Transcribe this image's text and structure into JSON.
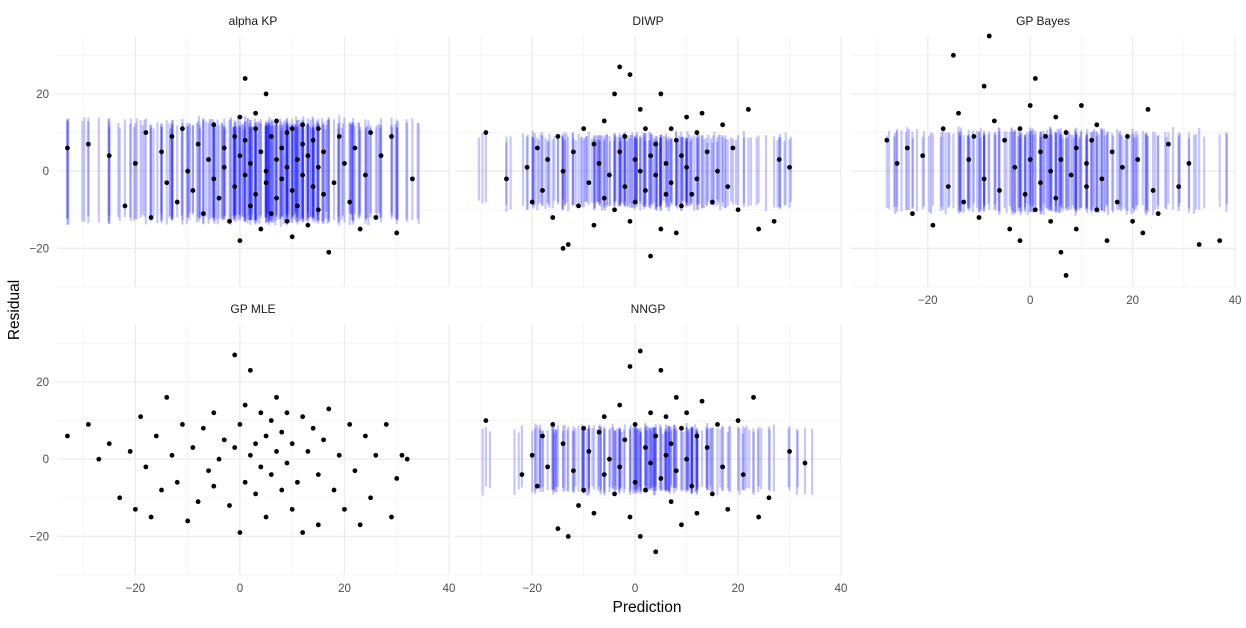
{
  "chart_data": {
    "type": "scatter",
    "xlabel": "Prediction",
    "ylabel": "Residual",
    "xlim": [
      -35,
      40
    ],
    "ylim": [
      -30,
      35
    ],
    "x_ticks": [
      -20,
      0,
      20,
      40
    ],
    "y_ticks": [
      -20,
      0,
      20
    ],
    "grid": true,
    "colors": {
      "points": "#000000",
      "intervals": "#0000ff",
      "grid": "#ebebeb"
    },
    "panels": [
      {
        "title": "alpha KP",
        "has_intervals": true,
        "interval_halfwidth": 12.5,
        "x": [
          -33,
          -29,
          -25,
          -22,
          -20,
          -18,
          -17,
          -15,
          -14,
          -13,
          -12,
          -11,
          -10,
          -9,
          -8,
          -7,
          -6,
          -5,
          -5,
          -4,
          -3,
          -3,
          -2,
          -1,
          -1,
          0,
          0,
          0,
          1,
          1,
          1,
          2,
          2,
          3,
          3,
          3,
          4,
          4,
          5,
          5,
          5,
          6,
          6,
          7,
          7,
          7,
          8,
          8,
          9,
          9,
          9,
          10,
          10,
          10,
          11,
          11,
          12,
          12,
          12,
          13,
          13,
          14,
          14,
          15,
          15,
          15,
          16,
          16,
          17,
          18,
          19,
          20,
          21,
          22,
          23,
          24,
          25,
          26,
          27,
          29,
          30,
          33
        ],
        "y": [
          6,
          7,
          4,
          -9,
          2,
          10,
          -12,
          5,
          -3,
          9,
          -8,
          11,
          0,
          -5,
          7,
          -11,
          3,
          12,
          -2,
          -7,
          6,
          1,
          -13,
          9,
          -4,
          14,
          -18,
          4,
          -1,
          8,
          24,
          -9,
          2,
          11,
          -6,
          15,
          -15,
          5,
          -3,
          0,
          20,
          9,
          -11,
          3,
          -7,
          13,
          -2,
          6,
          -13,
          10,
          1,
          -5,
          11,
          -17,
          3,
          -9,
          7,
          -1,
          12,
          -14,
          4,
          8,
          -4,
          1,
          -10,
          11,
          -6,
          5,
          -21,
          -3,
          9,
          2,
          -8,
          6,
          -15,
          -1,
          10,
          -12,
          4,
          9,
          -16,
          -2
        ],
        "errorbar_x": [
          -33,
          -29,
          -27,
          -25,
          -23,
          -21,
          -19,
          -17,
          -15,
          -13,
          -11,
          -9,
          -7,
          -5,
          -3,
          -1,
          1,
          3,
          5,
          7,
          9,
          11,
          13,
          15,
          17,
          19,
          21,
          23,
          25,
          27,
          29,
          30,
          32,
          34
        ]
      },
      {
        "title": "DIWP",
        "has_intervals": true,
        "interval_halfwidth": 9,
        "x": [
          -29,
          -25,
          -21,
          -20,
          -19,
          -18,
          -17,
          -16,
          -15,
          -14,
          -14,
          -13,
          -12,
          -11,
          -10,
          -9,
          -8,
          -8,
          -7,
          -6,
          -6,
          -5,
          -4,
          -4,
          -3,
          -3,
          -2,
          -2,
          -1,
          -1,
          0,
          0,
          1,
          1,
          2,
          2,
          3,
          3,
          4,
          4,
          5,
          5,
          6,
          6,
          7,
          7,
          8,
          8,
          9,
          9,
          10,
          10,
          11,
          12,
          12,
          13,
          14,
          15,
          16,
          17,
          18,
          19,
          20,
          22,
          24,
          27,
          28,
          30
        ],
        "y": [
          10,
          -2,
          1,
          -8,
          6,
          -5,
          3,
          -12,
          9,
          -20,
          0,
          -19,
          5,
          -9,
          11,
          -3,
          7,
          -14,
          2,
          -7,
          13,
          -1,
          20,
          -10,
          5,
          27,
          -4,
          9,
          -13,
          25,
          3,
          -8,
          16,
          0,
          -5,
          11,
          -22,
          4,
          -1,
          7,
          -15,
          20,
          2,
          -6,
          11,
          -3,
          8,
          -16,
          4,
          -9,
          14,
          1,
          -6,
          10,
          -2,
          15,
          5,
          -8,
          0,
          12,
          -4,
          6,
          -10,
          16,
          -15,
          -13,
          3,
          1
        ]
      },
      {
        "title": "GP Bayes",
        "has_intervals": true,
        "interval_halfwidth": 10,
        "x": [
          -28,
          -26,
          -24,
          -23,
          -21,
          -19,
          -17,
          -16,
          -15,
          -14,
          -13,
          -12,
          -11,
          -10,
          -9,
          -9,
          -8,
          -7,
          -6,
          -5,
          -4,
          -3,
          -2,
          -2,
          -1,
          0,
          0,
          1,
          1,
          2,
          2,
          3,
          4,
          4,
          5,
          5,
          6,
          6,
          7,
          7,
          8,
          9,
          9,
          10,
          11,
          11,
          12,
          13,
          13,
          14,
          15,
          16,
          17,
          18,
          19,
          20,
          21,
          22,
          23,
          24,
          25,
          27,
          29,
          31,
          33,
          37
        ],
        "y": [
          8,
          2,
          6,
          -11,
          4,
          -14,
          11,
          -4,
          30,
          15,
          -8,
          3,
          9,
          -12,
          22,
          -2,
          35,
          13,
          -5,
          8,
          -15,
          1,
          11,
          -18,
          -6,
          17,
          3,
          -10,
          24,
          5,
          -3,
          9,
          -13,
          0,
          14,
          -7,
          3,
          -21,
          -27,
          10,
          -1,
          6,
          -15,
          17,
          -4,
          2,
          8,
          -10,
          12,
          -2,
          -18,
          5,
          -8,
          1,
          9,
          -13,
          3,
          -16,
          16,
          -5,
          -11,
          7,
          -4,
          2,
          -19,
          -18
        ]
      },
      {
        "title": "GP MLE",
        "has_intervals": false,
        "x": [
          -33,
          -29,
          -27,
          -25,
          -23,
          -21,
          -20,
          -19,
          -18,
          -17,
          -16,
          -15,
          -14,
          -13,
          -12,
          -11,
          -10,
          -9,
          -8,
          -7,
          -6,
          -5,
          -5,
          -4,
          -3,
          -2,
          -1,
          -1,
          0,
          0,
          1,
          1,
          2,
          2,
          3,
          3,
          4,
          4,
          5,
          5,
          6,
          6,
          7,
          7,
          8,
          8,
          9,
          9,
          10,
          10,
          11,
          12,
          12,
          13,
          14,
          15,
          15,
          16,
          17,
          18,
          19,
          20,
          21,
          22,
          23,
          24,
          25,
          26,
          28,
          29,
          30,
          31,
          32
        ],
        "y": [
          6,
          9,
          0,
          4,
          -10,
          2,
          -13,
          11,
          -2,
          -15,
          6,
          -8,
          16,
          1,
          -6,
          9,
          -16,
          3,
          -11,
          8,
          -3,
          12,
          -7,
          0,
          5,
          -12,
          27,
          3,
          -19,
          9,
          14,
          -6,
          1,
          23,
          -9,
          4,
          12,
          -2,
          6,
          -15,
          10,
          -4,
          2,
          16,
          -8,
          7,
          12,
          -1,
          -13,
          4,
          -6,
          11,
          -19,
          2,
          8,
          -4,
          -17,
          5,
          13,
          -8,
          1,
          -13,
          9,
          -3,
          -17,
          6,
          -10,
          1,
          9,
          -15,
          -5,
          1,
          0
        ]
      },
      {
        "title": "NNGP",
        "has_intervals": true,
        "interval_halfwidth": 8,
        "x": [
          -29,
          -22,
          -20,
          -19,
          -18,
          -17,
          -16,
          -15,
          -14,
          -13,
          -12,
          -11,
          -10,
          -10,
          -9,
          -8,
          -7,
          -6,
          -6,
          -5,
          -4,
          -3,
          -3,
          -2,
          -1,
          -1,
          0,
          0,
          1,
          1,
          2,
          2,
          3,
          3,
          4,
          4,
          5,
          5,
          6,
          6,
          7,
          7,
          8,
          8,
          9,
          9,
          10,
          10,
          11,
          12,
          12,
          13,
          14,
          15,
          16,
          17,
          18,
          20,
          21,
          23,
          24,
          26,
          30,
          33
        ],
        "y": [
          10,
          -4,
          1,
          -7,
          6,
          -2,
          9,
          -18,
          4,
          -20,
          -3,
          -12,
          8,
          -8,
          2,
          -14,
          7,
          -4,
          11,
          0,
          -9,
          14,
          -2,
          5,
          -15,
          24,
          -6,
          9,
          -20,
          28,
          3,
          -8,
          12,
          -1,
          6,
          -24,
          23,
          -5,
          1,
          11,
          -11,
          4,
          16,
          -3,
          8,
          -17,
          12,
          0,
          -7,
          6,
          -14,
          15,
          3,
          -9,
          9,
          -2,
          -13,
          10,
          -4,
          16,
          -15,
          -10,
          2,
          -1
        ]
      }
    ]
  }
}
